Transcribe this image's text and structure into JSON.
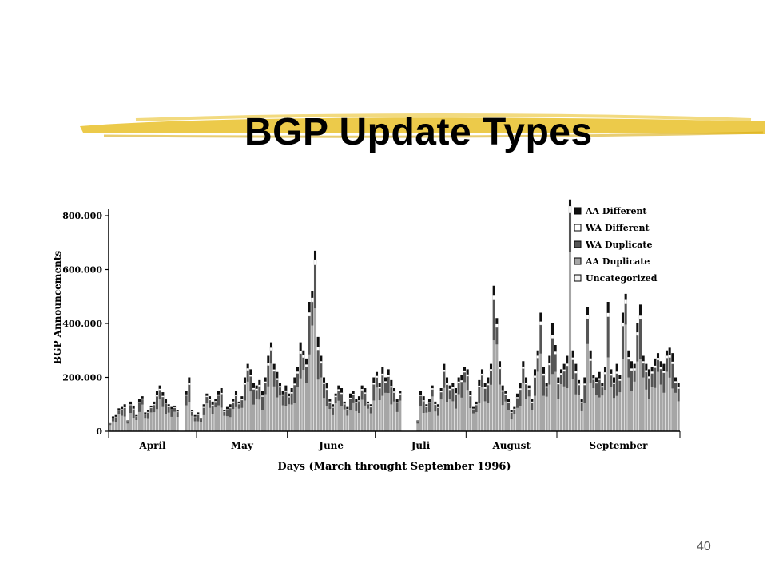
{
  "slide": {
    "title": "BGP Update Types",
    "page_number": "40",
    "highlight_color": "#e9c12a"
  },
  "chart_data": {
    "type": "bar",
    "stacked": true,
    "ylabel": "BGP Announcements",
    "xlabel": "Days (March throught September 1996)",
    "ylim": [
      0,
      800000
    ],
    "yticks": [
      0,
      200000,
      400000,
      600000,
      800000
    ],
    "ytick_labels": [
      "0",
      "200.000",
      "400.000",
      "600.000",
      "800.000"
    ],
    "month_labels": [
      "April",
      "May",
      "June",
      "Juli",
      "August",
      "September"
    ],
    "legend_position": "top-right",
    "legend": [
      {
        "name": "AA Different",
        "color": "#101010"
      },
      {
        "name": "WA Different",
        "color": "#ffffff"
      },
      {
        "name": "WA Duplicate",
        "color": "#555555"
      },
      {
        "name": "AA Duplicate",
        "color": "#a6a6a6"
      },
      {
        "name": "Uncategorized",
        "color": "#f4f4f4"
      }
    ],
    "series_order": [
      "AA Duplicate",
      "WA Duplicate",
      "WA Different",
      "AA Different"
    ],
    "day_totals": [
      30000,
      55000,
      60000,
      85000,
      90000,
      100000,
      40000,
      110000,
      95000,
      60000,
      120000,
      130000,
      70000,
      80000,
      95000,
      110000,
      150000,
      170000,
      145000,
      120000,
      100000,
      90000,
      95000,
      80000,
      0,
      0,
      150000,
      200000,
      80000,
      60000,
      70000,
      50000,
      100000,
      140000,
      130000,
      110000,
      120000,
      150000,
      160000,
      80000,
      90000,
      100000,
      120000,
      150000,
      110000,
      130000,
      200000,
      250000,
      230000,
      180000,
      170000,
      190000,
      150000,
      200000,
      280000,
      330000,
      250000,
      220000,
      180000,
      150000,
      170000,
      140000,
      160000,
      200000,
      240000,
      330000,
      300000,
      270000,
      480000,
      520000,
      670000,
      350000,
      280000,
      200000,
      180000,
      120000,
      100000,
      140000,
      170000,
      160000,
      110000,
      90000,
      140000,
      150000,
      120000,
      130000,
      170000,
      160000,
      110000,
      100000,
      200000,
      220000,
      180000,
      240000,
      200000,
      230000,
      190000,
      160000,
      120000,
      150000,
      0,
      0,
      0,
      0,
      0,
      40000,
      150000,
      130000,
      100000,
      120000,
      170000,
      110000,
      100000,
      160000,
      250000,
      200000,
      170000,
      180000,
      160000,
      200000,
      210000,
      240000,
      230000,
      150000,
      90000,
      110000,
      190000,
      230000,
      180000,
      200000,
      250000,
      540000,
      420000,
      260000,
      170000,
      150000,
      120000,
      80000,
      90000,
      140000,
      180000,
      260000,
      200000,
      170000,
      120000,
      230000,
      300000,
      440000,
      240000,
      180000,
      280000,
      400000,
      320000,
      200000,
      230000,
      250000,
      280000,
      860000,
      300000,
      250000,
      190000,
      120000,
      200000,
      460000,
      300000,
      210000,
      200000,
      220000,
      180000,
      240000,
      480000,
      230000,
      200000,
      250000,
      210000,
      440000,
      510000,
      300000,
      260000,
      250000,
      400000,
      470000,
      280000,
      250000,
      230000,
      240000,
      270000,
      290000,
      260000,
      250000,
      300000,
      310000,
      290000,
      200000,
      180000
    ]
  }
}
